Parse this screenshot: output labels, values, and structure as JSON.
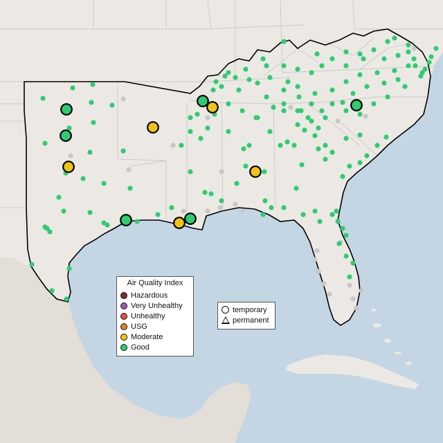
{
  "colors": {
    "land": "#ece9e4",
    "land_relief": "#e3ded7",
    "water": "#c4d6e4",
    "border": "#c9c9c9",
    "region_outline": "#000000",
    "gray_site": "#c7c7c7",
    "good": "#2ecc71",
    "moderate": "#f1c40f",
    "usg": "#e67e22",
    "unhealthy": "#e74c3c",
    "very_unhealthy": "#9b59b6",
    "hazardous": "#7b2e2e"
  },
  "aqi_legend": {
    "title": "Air Quality Index",
    "items": [
      {
        "label": "Hazardous",
        "color": "#7b2e2e"
      },
      {
        "label": "Very Unhealthy",
        "color": "#9b59b6"
      },
      {
        "label": "Unhealthy",
        "color": "#e74c3c"
      },
      {
        "label": "USG",
        "color": "#e67e22"
      },
      {
        "label": "Moderate",
        "color": "#f1c40f"
      },
      {
        "label": "Good",
        "color": "#2ecc71"
      }
    ]
  },
  "shape_legend": {
    "items": [
      {
        "label": "temporary",
        "shape": "circle-icon"
      },
      {
        "label": "permanent",
        "shape": "triangle-icon"
      }
    ]
  }
}
